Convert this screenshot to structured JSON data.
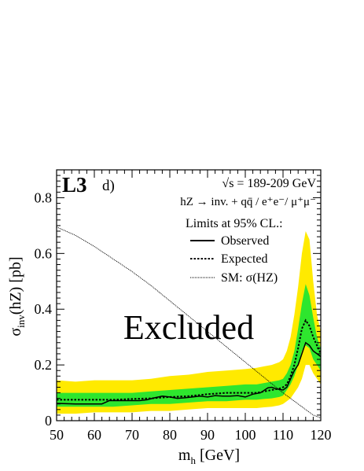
{
  "chart_data": {
    "type": "line",
    "experiment_label": "L3",
    "panel_label": "d)",
    "annotations": {
      "energy": "√s = 189-209 GeV",
      "channel": "hZ → inv. + qq̄ / e⁺e⁻/ μ⁺μ⁻",
      "limits_title": "Limits at 95% CL.:",
      "excluded": "Excluded"
    },
    "xlabel": "m_h [GeV]",
    "ylabel": "σ_inv(hZ) [pb]",
    "xlim": [
      50,
      120
    ],
    "ylim": [
      0,
      0.9
    ],
    "x_ticks": [
      50,
      60,
      70,
      80,
      90,
      100,
      110,
      120
    ],
    "y_ticks": [
      0,
      0.2,
      0.4,
      0.6,
      0.8
    ],
    "legend": [
      {
        "label": "Observed",
        "style": "solid"
      },
      {
        "label": "Expected",
        "style": "dotted"
      },
      {
        "label": "SM: σ(HZ)",
        "style": "fine-dotted"
      }
    ],
    "band_x": [
      50,
      55,
      60,
      65,
      70,
      75,
      80,
      85,
      90,
      95,
      100,
      103,
      105,
      107,
      109,
      110,
      111,
      112,
      113,
      114,
      115,
      116,
      117,
      118,
      119,
      120
    ],
    "band_2sigma_low": [
      0.025,
      0.025,
      0.03,
      0.03,
      0.03,
      0.035,
      0.035,
      0.04,
      0.045,
      0.045,
      0.045,
      0.045,
      0.048,
      0.05,
      0.055,
      0.06,
      0.07,
      0.08,
      0.1,
      0.12,
      0.15,
      0.2,
      0.2,
      0.17,
      0.15,
      0.13
    ],
    "band_2sigma_high": [
      0.145,
      0.14,
      0.145,
      0.145,
      0.145,
      0.15,
      0.16,
      0.165,
      0.175,
      0.18,
      0.185,
      0.19,
      0.195,
      0.2,
      0.21,
      0.22,
      0.25,
      0.3,
      0.38,
      0.48,
      0.6,
      0.68,
      0.65,
      0.5,
      0.38,
      0.32
    ],
    "band_1sigma_low": [
      0.05,
      0.05,
      0.05,
      0.05,
      0.055,
      0.06,
      0.06,
      0.065,
      0.07,
      0.07,
      0.075,
      0.075,
      0.078,
      0.08,
      0.085,
      0.09,
      0.11,
      0.13,
      0.16,
      0.2,
      0.25,
      0.27,
      0.26,
      0.22,
      0.2,
      0.18
    ],
    "band_1sigma_high": [
      0.1,
      0.1,
      0.1,
      0.1,
      0.1,
      0.105,
      0.11,
      0.115,
      0.12,
      0.125,
      0.13,
      0.13,
      0.135,
      0.14,
      0.145,
      0.15,
      0.17,
      0.2,
      0.25,
      0.33,
      0.42,
      0.49,
      0.45,
      0.37,
      0.3,
      0.26
    ],
    "series": [
      {
        "name": "Observed",
        "style": "solid",
        "x": [
          50,
          55,
          60,
          62,
          64,
          66,
          68,
          70,
          72,
          74,
          76,
          78,
          80,
          82,
          84,
          86,
          88,
          90,
          92,
          94,
          96,
          98,
          100,
          102,
          104,
          106,
          107,
          108,
          109,
          110,
          111,
          112,
          113,
          114,
          115,
          116,
          117,
          118,
          119,
          120
        ],
        "y": [
          0.062,
          0.06,
          0.06,
          0.06,
          0.072,
          0.072,
          0.072,
          0.072,
          0.072,
          0.075,
          0.082,
          0.088,
          0.085,
          0.08,
          0.082,
          0.085,
          0.088,
          0.085,
          0.09,
          0.088,
          0.088,
          0.09,
          0.085,
          0.095,
          0.1,
          0.118,
          0.12,
          0.115,
          0.112,
          0.11,
          0.12,
          0.15,
          0.18,
          0.2,
          0.24,
          0.28,
          0.27,
          0.25,
          0.24,
          0.23
        ]
      },
      {
        "name": "Expected",
        "style": "dotted",
        "x": [
          50,
          55,
          60,
          65,
          70,
          75,
          80,
          85,
          90,
          95,
          100,
          103,
          105,
          107,
          109,
          110,
          111,
          112,
          113,
          114,
          115,
          116,
          117,
          118,
          119,
          120
        ],
        "y": [
          0.075,
          0.075,
          0.075,
          0.075,
          0.078,
          0.08,
          0.085,
          0.088,
          0.095,
          0.1,
          0.1,
          0.1,
          0.105,
          0.11,
          0.115,
          0.12,
          0.13,
          0.16,
          0.2,
          0.26,
          0.33,
          0.36,
          0.34,
          0.3,
          0.27,
          0.24
        ]
      },
      {
        "name": "SM: σ(HZ)",
        "style": "fine-dotted",
        "x": [
          50,
          55,
          60,
          65,
          70,
          75,
          80,
          85,
          90,
          95,
          100,
          105,
          110,
          115,
          118,
          120
        ],
        "y": [
          0.695,
          0.665,
          0.625,
          0.58,
          0.535,
          0.485,
          0.43,
          0.375,
          0.32,
          0.265,
          0.21,
          0.155,
          0.1,
          0.05,
          0.02,
          0.01
        ]
      }
    ]
  },
  "colors": {
    "band_2sigma": "#ffea00",
    "band_1sigma": "#2ee62e",
    "line": "#000000",
    "background": "#ffffff"
  }
}
